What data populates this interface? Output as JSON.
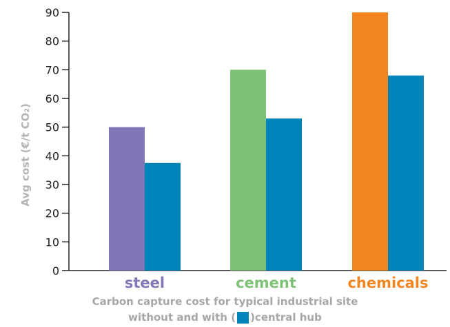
{
  "chart_data": {
    "type": "bar",
    "categories": [
      "steel",
      "cement",
      "chemicals"
    ],
    "category_colors": [
      "#7f77b6",
      "#7dc275",
      "#f08521"
    ],
    "series": [
      {
        "values": [
          50,
          70,
          90
        ]
      },
      {
        "values": [
          37.5,
          53,
          68
        ]
      }
    ],
    "hub_color": "#0085ba",
    "ylabel": "Avg cost (€/t CO₂)",
    "ylim": [
      0,
      90
    ],
    "yticks": [
      0,
      10,
      20,
      30,
      40,
      50,
      60,
      70,
      80,
      90
    ],
    "grid": false
  },
  "caption": {
    "line1": "Carbon capture cost for typical industrial site",
    "line2_before": "without and with (",
    "line2_after": ")central hub"
  }
}
